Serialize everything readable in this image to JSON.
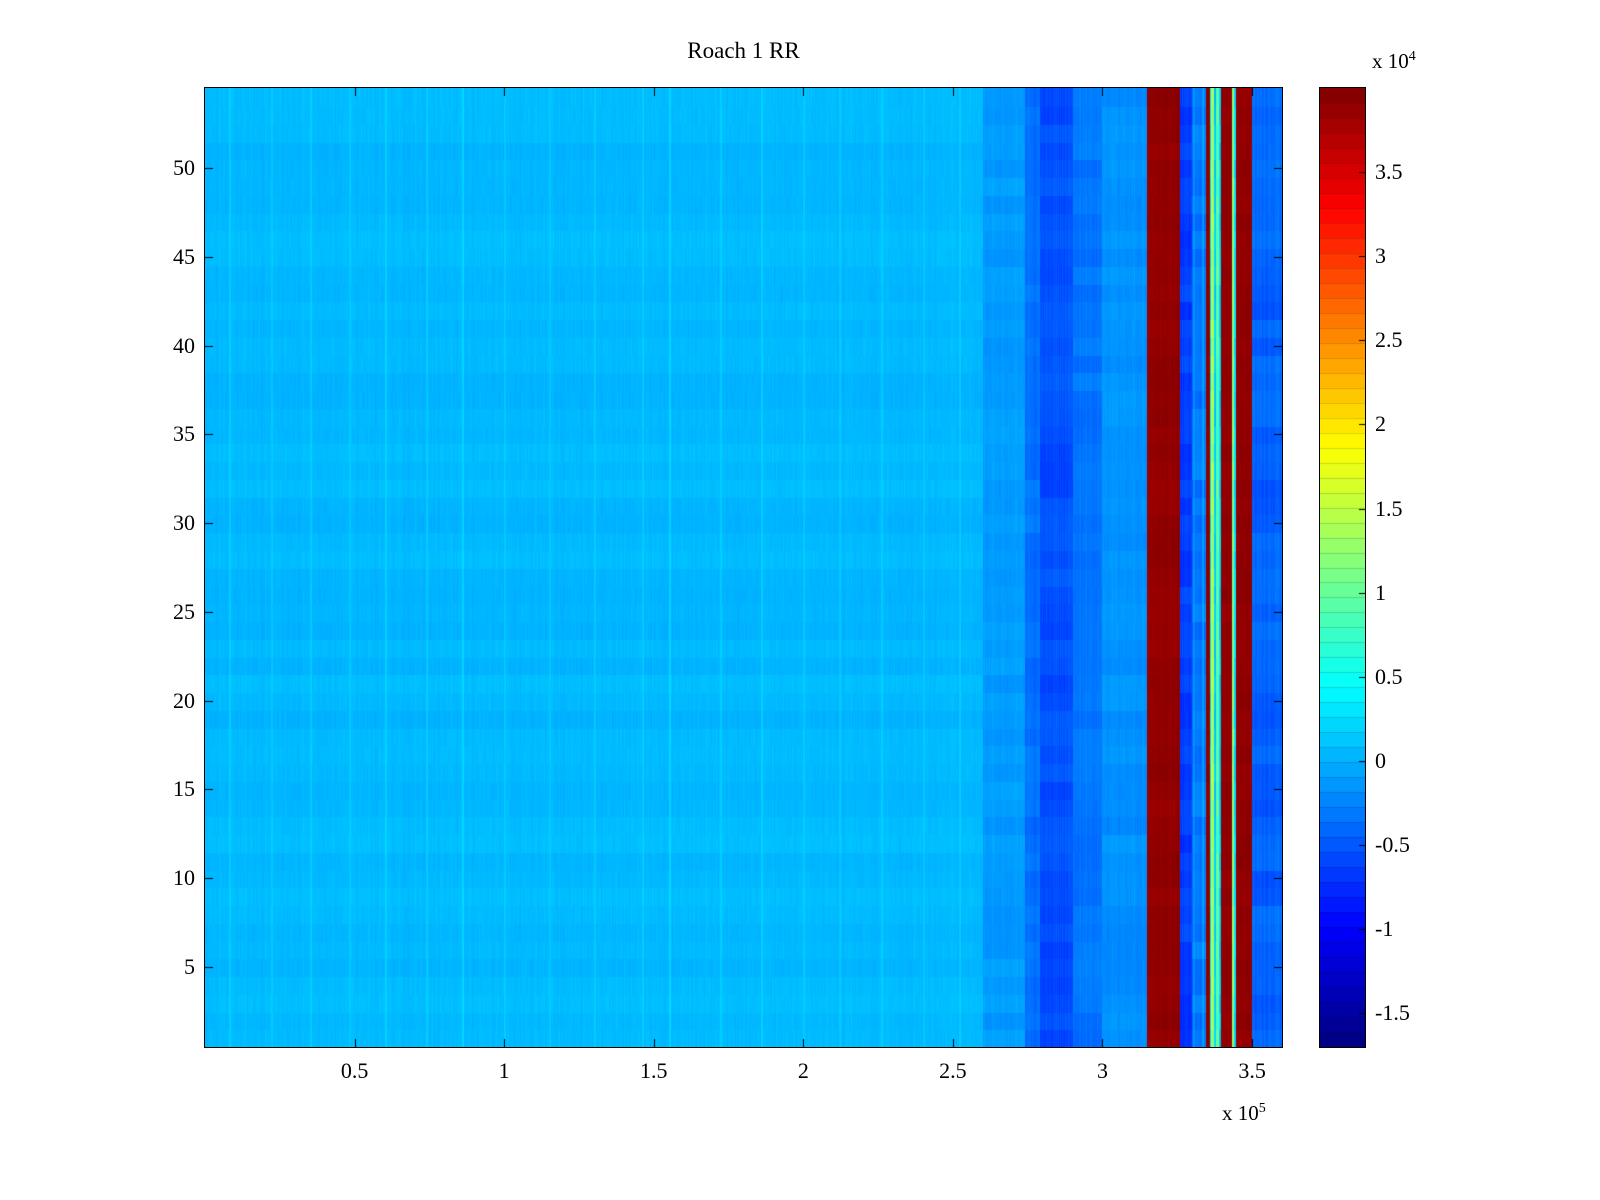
{
  "chart_data": {
    "type": "heatmap",
    "title": "Roach 1 RR",
    "rows": 54,
    "x_axis": {
      "range_e5": [
        0,
        3.6
      ],
      "tick_values_e5": [
        0.5,
        1,
        1.5,
        2,
        2.5,
        3,
        3.5
      ],
      "tick_labels": [
        "0.5",
        "1",
        "1.5",
        "2",
        "2.5",
        "3",
        "3.5"
      ],
      "unit_exponent_label": {
        "base": "x 10",
        "exp": "5"
      }
    },
    "y_axis": {
      "range": [
        0.5,
        54.5
      ],
      "tick_values": [
        5,
        10,
        15,
        20,
        25,
        30,
        35,
        40,
        45,
        50
      ],
      "tick_labels": [
        "5",
        "10",
        "15",
        "20",
        "25",
        "30",
        "35",
        "40",
        "45",
        "50"
      ]
    },
    "colorbar": {
      "colormap": "jet",
      "segments": 64,
      "clim_e4": [
        -1.7,
        4.0
      ],
      "tick_values_e4": [
        3.5,
        3,
        2.5,
        2,
        1.5,
        1,
        0.5,
        0,
        -0.5,
        -1,
        -1.5
      ],
      "tick_labels": [
        "3.5",
        "3",
        "2.5",
        "2",
        "1.5",
        "1",
        "0.5",
        "0",
        "-0.5",
        "-1",
        "-1.5"
      ],
      "unit_exponent_label": {
        "base": "x 10",
        "exp": "4"
      }
    },
    "bands": [
      {
        "x0": 0.0,
        "x1": 2.6,
        "v": 0.05,
        "noise": 0.04
      },
      {
        "x0": 2.6,
        "x1": 2.74,
        "v": -0.12,
        "noise": 0.05
      },
      {
        "x0": 2.74,
        "x1": 2.79,
        "v": -0.35,
        "noise": 0.07
      },
      {
        "x0": 2.79,
        "x1": 2.9,
        "v": -0.55,
        "noise": 0.09
      },
      {
        "x0": 2.9,
        "x1": 3.0,
        "v": -0.32,
        "noise": 0.07
      },
      {
        "x0": 3.0,
        "x1": 3.15,
        "v": -0.18,
        "noise": 0.06
      },
      {
        "x0": 3.15,
        "x1": 3.26,
        "v": 3.9,
        "noise": 0.04
      },
      {
        "x0": 3.26,
        "x1": 3.3,
        "v": -0.65,
        "noise": 0.1
      },
      {
        "x0": 3.3,
        "x1": 3.345,
        "v": -0.3,
        "noise": 0.1
      },
      {
        "x0": 3.345,
        "x1": 3.358,
        "v": 3.9,
        "noise": 0.03
      },
      {
        "x0": 3.358,
        "x1": 3.364,
        "v": 0.35,
        "noise": 0.1
      },
      {
        "x0": 3.364,
        "x1": 3.372,
        "v": 1.4,
        "noise": 0.15
      },
      {
        "x0": 3.372,
        "x1": 3.38,
        "v": 0.15,
        "noise": 0.1
      },
      {
        "x0": 3.38,
        "x1": 3.388,
        "v": 0.9,
        "noise": 0.15
      },
      {
        "x0": 3.388,
        "x1": 3.396,
        "v": 0.2,
        "noise": 0.1
      },
      {
        "x0": 3.396,
        "x1": 3.432,
        "v": 3.9,
        "noise": 0.03
      },
      {
        "x0": 3.432,
        "x1": 3.438,
        "v": 1.1,
        "noise": 0.15
      },
      {
        "x0": 3.438,
        "x1": 3.446,
        "v": 0.25,
        "noise": 0.1
      },
      {
        "x0": 3.446,
        "x1": 3.5,
        "v": 3.9,
        "noise": 0.03
      },
      {
        "x0": 3.5,
        "x1": 3.601,
        "v": -0.45,
        "noise": 0.1
      }
    ],
    "streaks": [
      [
        0.08,
        0.3
      ],
      [
        0.22,
        0.28
      ],
      [
        0.35,
        0.3
      ],
      [
        0.48,
        0.28
      ],
      [
        0.6,
        0.38
      ],
      [
        0.74,
        0.3
      ],
      [
        0.86,
        0.4
      ],
      [
        1.0,
        0.3
      ],
      [
        1.15,
        0.28
      ],
      [
        1.3,
        0.3
      ],
      [
        1.46,
        0.28
      ],
      [
        1.55,
        0.4
      ],
      [
        1.72,
        0.3
      ],
      [
        1.86,
        0.35
      ],
      [
        2.0,
        0.3
      ],
      [
        2.12,
        0.28
      ],
      [
        2.26,
        0.3
      ],
      [
        2.4,
        0.28
      ],
      [
        2.52,
        0.3
      ],
      [
        3.302,
        0.05
      ],
      [
        3.332,
        0.1
      ]
    ]
  }
}
